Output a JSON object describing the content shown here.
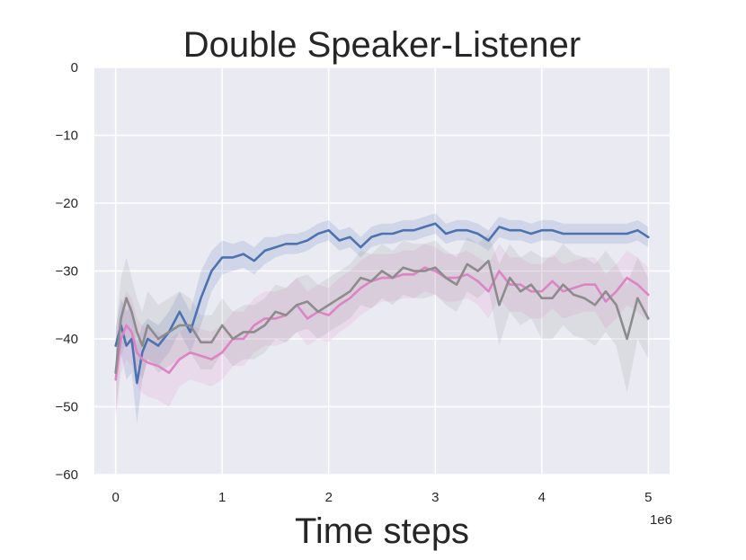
{
  "chart_data": {
    "type": "line",
    "title": "Double Speaker-Listener",
    "xlabel": "Time steps",
    "ylabel": "",
    "x_offset_label": "1e6",
    "xlim": [
      -0.2,
      5.2
    ],
    "ylim": [
      -60,
      0
    ],
    "xticks": [
      0,
      1,
      2,
      3,
      4,
      5
    ],
    "xtick_labels": [
      "0",
      "1",
      "2",
      "3",
      "4",
      "5"
    ],
    "yticks": [
      0,
      -10,
      -20,
      -30,
      -40,
      -50,
      -60
    ],
    "ytick_labels": [
      "0",
      "−10",
      "−20",
      "−30",
      "−40",
      "−50",
      "−60"
    ],
    "grid": true,
    "legend": false,
    "background_color": "#eaeaf2",
    "series": [
      {
        "color": "#4c72b0",
        "x": [
          0,
          0.05,
          0.1,
          0.15,
          0.2,
          0.25,
          0.3,
          0.4,
          0.5,
          0.6,
          0.7,
          0.8,
          0.9,
          1.0,
          1.1,
          1.2,
          1.3,
          1.4,
          1.5,
          1.6,
          1.7,
          1.8,
          1.9,
          2.0,
          2.1,
          2.2,
          2.3,
          2.4,
          2.5,
          2.6,
          2.7,
          2.8,
          2.9,
          3.0,
          3.1,
          3.2,
          3.3,
          3.4,
          3.5,
          3.6,
          3.7,
          3.8,
          3.9,
          4.0,
          4.1,
          4.2,
          4.3,
          4.4,
          4.5,
          4.6,
          4.7,
          4.8,
          4.9,
          5.0
        ],
        "y": [
          -41,
          -38,
          -41,
          -40,
          -46.5,
          -42,
          -40,
          -41,
          -39,
          -36,
          -39,
          -34,
          -30,
          -28,
          -28,
          -27.5,
          -28.5,
          -27,
          -26.5,
          -26,
          -26,
          -25.5,
          -24.5,
          -24,
          -25.5,
          -25,
          -26.5,
          -25,
          -24.5,
          -24.5,
          -24,
          -24,
          -23.5,
          -23,
          -24.5,
          -24,
          -24,
          -24.5,
          -25.5,
          -23.5,
          -24,
          -24,
          -24.5,
          -24,
          -24,
          -24.5,
          -24.5,
          -24.5,
          -24.5,
          -24.5,
          -24.5,
          -24.5,
          -24,
          -25
        ],
        "band": [
          2.5,
          4,
          5,
          5,
          6,
          4,
          3,
          3,
          3,
          3,
          3,
          4,
          3,
          2.5,
          2,
          2,
          2,
          2,
          1.5,
          1.5,
          1.5,
          1.5,
          1.5,
          1.5,
          1.5,
          1.5,
          1.5,
          1.5,
          1.5,
          1.5,
          1.5,
          1.5,
          1.5,
          1.5,
          1.5,
          1.5,
          1.5,
          1.5,
          1.5,
          1.5,
          1.5,
          1.5,
          1.5,
          1.5,
          1.5,
          1.5,
          1.5,
          1.5,
          1.5,
          1.5,
          1.5,
          1.5,
          1.5,
          1.5
        ]
      },
      {
        "color": "#dd84c4",
        "x": [
          0,
          0.05,
          0.1,
          0.15,
          0.2,
          0.25,
          0.3,
          0.4,
          0.5,
          0.6,
          0.7,
          0.8,
          0.9,
          1.0,
          1.1,
          1.2,
          1.3,
          1.4,
          1.5,
          1.6,
          1.7,
          1.8,
          1.9,
          2.0,
          2.1,
          2.2,
          2.3,
          2.4,
          2.5,
          2.6,
          2.7,
          2.8,
          2.9,
          3.0,
          3.1,
          3.2,
          3.3,
          3.4,
          3.5,
          3.6,
          3.7,
          3.8,
          3.9,
          4.0,
          4.1,
          4.2,
          4.3,
          4.4,
          4.5,
          4.6,
          4.7,
          4.8,
          4.9,
          5.0
        ],
        "y": [
          -46,
          -40,
          -38,
          -39,
          -42,
          -43,
          -43.5,
          -44,
          -45,
          -43,
          -42,
          -42.5,
          -43,
          -42,
          -40,
          -40,
          -38,
          -37,
          -37,
          -36.5,
          -35,
          -37,
          -36,
          -36.5,
          -35,
          -34,
          -32.5,
          -31.5,
          -31,
          -31,
          -30.5,
          -30.5,
          -29.5,
          -30,
          -31,
          -31,
          -30.5,
          -31.5,
          -33,
          -30,
          -32,
          -32,
          -33,
          -33,
          -31.5,
          -33,
          -32.5,
          -32,
          -32,
          -34.5,
          -33,
          -31,
          -32,
          -33.5
        ],
        "band": [
          6,
          5,
          5,
          5,
          5,
          5,
          5,
          5,
          5,
          4,
          4,
          4,
          4,
          4,
          4,
          4,
          4,
          4,
          4,
          4,
          4,
          4,
          4,
          4,
          4,
          4,
          4,
          4,
          3.5,
          3.5,
          3.5,
          3.5,
          3.5,
          3.5,
          3.5,
          3.5,
          3.5,
          3.5,
          4,
          4,
          4,
          4,
          4,
          4,
          4,
          4,
          4,
          4,
          4,
          4,
          4,
          4,
          4,
          4
        ]
      },
      {
        "color": "#8c8c8c",
        "x": [
          0,
          0.05,
          0.1,
          0.15,
          0.2,
          0.25,
          0.3,
          0.4,
          0.5,
          0.6,
          0.7,
          0.8,
          0.9,
          1.0,
          1.1,
          1.2,
          1.3,
          1.4,
          1.5,
          1.6,
          1.7,
          1.8,
          1.9,
          2.0,
          2.1,
          2.2,
          2.3,
          2.4,
          2.5,
          2.6,
          2.7,
          2.8,
          2.9,
          3.0,
          3.1,
          3.2,
          3.3,
          3.4,
          3.5,
          3.6,
          3.7,
          3.8,
          3.9,
          4.0,
          4.1,
          4.2,
          4.3,
          4.4,
          4.5,
          4.6,
          4.7,
          4.8,
          4.9,
          5.0
        ],
        "y": [
          -45,
          -37,
          -34,
          -36,
          -39,
          -41,
          -38,
          -40,
          -39,
          -38,
          -38,
          -40.5,
          -40.5,
          -38,
          -40,
          -39,
          -39,
          -38,
          -36,
          -36.5,
          -35,
          -34.5,
          -36,
          -35,
          -34,
          -33,
          -31,
          -31.5,
          -30,
          -31,
          -29.5,
          -30,
          -30,
          -29.5,
          -31,
          -32,
          -29,
          -30,
          -28.5,
          -35,
          -31,
          -33,
          -32,
          -34,
          -34,
          -32,
          -33.5,
          -34,
          -35,
          -33,
          -35,
          -40,
          -34,
          -37
        ],
        "band": [
          6,
          6,
          6,
          5,
          5,
          5,
          5,
          5,
          5,
          5,
          4,
          4,
          4,
          4,
          4,
          4,
          4,
          4,
          4,
          4,
          4,
          4,
          4,
          4,
          4,
          4,
          4,
          4,
          4,
          4,
          4,
          4,
          4,
          4,
          4,
          4,
          4,
          4,
          4,
          6,
          5,
          5,
          5,
          6,
          6,
          6,
          6,
          6,
          6,
          6,
          6,
          8,
          6,
          6
        ]
      }
    ]
  }
}
